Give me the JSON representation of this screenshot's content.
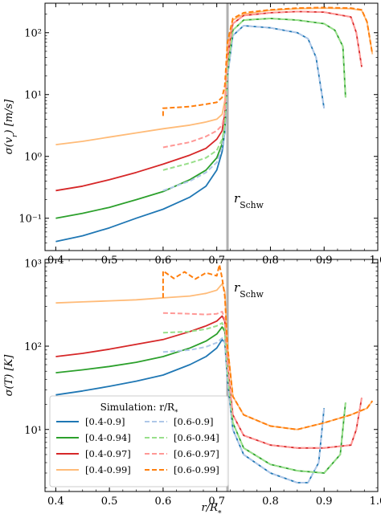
{
  "chart_data": [
    {
      "type": "line",
      "panel": "top",
      "ylabel": "σ(v_r) [m/s]",
      "xlabel": "",
      "yscale": "log",
      "xlim": [
        0.38,
        1.0
      ],
      "ylim": [
        0.03,
        300
      ],
      "xticks": [
        0.4,
        0.5,
        0.6,
        0.7,
        0.8,
        0.9,
        1.0
      ],
      "xtick_labels": [
        "0.4",
        "0.5",
        "0.6",
        "0.7",
        "0.8",
        "0.9",
        "1.0"
      ],
      "yticks": [
        0.1,
        1,
        10,
        100
      ],
      "ytick_labels": [
        "10⁻¹",
        "10⁰",
        "10¹",
        "10²"
      ],
      "vline": {
        "x": 0.72,
        "label": "r_Schw"
      },
      "series": [
        {
          "name": "[0.4-0.9]",
          "color": "#1f77b4",
          "style": "solid",
          "x": [
            0.4,
            0.45,
            0.5,
            0.55,
            0.6,
            0.65,
            0.68,
            0.7,
            0.71,
            0.715,
            0.72,
            0.73,
            0.75,
            0.8,
            0.85,
            0.87,
            0.885,
            0.9
          ],
          "y": [
            0.042,
            0.052,
            0.07,
            0.1,
            0.14,
            0.22,
            0.33,
            0.6,
            1.2,
            2.5,
            20,
            90,
            130,
            120,
            100,
            80,
            40,
            6
          ]
        },
        {
          "name": "[0.4-0.94]",
          "color": "#2ca02c",
          "style": "solid",
          "x": [
            0.4,
            0.45,
            0.5,
            0.55,
            0.6,
            0.65,
            0.68,
            0.7,
            0.71,
            0.715,
            0.72,
            0.73,
            0.75,
            0.8,
            0.85,
            0.9,
            0.92,
            0.935,
            0.94
          ],
          "y": [
            0.1,
            0.12,
            0.15,
            0.2,
            0.27,
            0.42,
            0.6,
            0.95,
            1.6,
            3,
            25,
            110,
            160,
            170,
            160,
            140,
            110,
            60,
            9
          ]
        },
        {
          "name": "[0.4-0.97]",
          "color": "#d62728",
          "style": "solid",
          "x": [
            0.4,
            0.45,
            0.5,
            0.55,
            0.6,
            0.65,
            0.68,
            0.7,
            0.71,
            0.715,
            0.72,
            0.73,
            0.75,
            0.8,
            0.85,
            0.9,
            0.95,
            0.96,
            0.97
          ],
          "y": [
            0.28,
            0.33,
            0.42,
            0.55,
            0.75,
            1.05,
            1.35,
            1.9,
            2.6,
            5,
            40,
            140,
            190,
            210,
            220,
            215,
            180,
            100,
            28
          ]
        },
        {
          "name": "[0.4-0.99]",
          "color": "#ffbb78",
          "style": "solid",
          "x": [
            0.4,
            0.45,
            0.5,
            0.55,
            0.6,
            0.65,
            0.68,
            0.7,
            0.71,
            0.715,
            0.72,
            0.73,
            0.75,
            0.8,
            0.85,
            0.9,
            0.95,
            0.97,
            0.98,
            0.99
          ],
          "y": [
            1.55,
            1.75,
            2.05,
            2.4,
            2.8,
            3.2,
            3.6,
            4,
            4.8,
            8,
            60,
            160,
            200,
            230,
            245,
            250,
            245,
            230,
            150,
            45
          ]
        },
        {
          "name": "[0.6-0.9]",
          "color": "#aec7e8",
          "style": "dashed",
          "x": [
            0.6,
            0.65,
            0.68,
            0.7,
            0.71,
            0.715,
            0.72,
            0.73,
            0.75,
            0.8,
            0.85,
            0.87,
            0.885,
            0.9
          ],
          "y": [
            0.28,
            0.4,
            0.55,
            0.8,
            1.4,
            2.6,
            20,
            90,
            130,
            120,
            100,
            80,
            40,
            6
          ]
        },
        {
          "name": "[0.6-0.94]",
          "color": "#98df8a",
          "style": "dashed",
          "x": [
            0.6,
            0.65,
            0.68,
            0.7,
            0.71,
            0.715,
            0.72,
            0.73,
            0.75,
            0.8,
            0.85,
            0.9,
            0.92,
            0.935,
            0.94
          ],
          "y": [
            0.6,
            0.78,
            0.95,
            1.25,
            1.9,
            3.2,
            25,
            110,
            160,
            170,
            160,
            140,
            110,
            60,
            9
          ]
        },
        {
          "name": "[0.6-0.97]",
          "color": "#ff9896",
          "style": "dashed",
          "x": [
            0.6,
            0.65,
            0.68,
            0.7,
            0.71,
            0.715,
            0.72,
            0.73,
            0.75,
            0.8,
            0.85,
            0.9,
            0.95,
            0.96,
            0.97
          ],
          "y": [
            1.4,
            1.7,
            2.1,
            2.6,
            3.2,
            5.2,
            40,
            140,
            190,
            210,
            220,
            215,
            180,
            100,
            28
          ]
        },
        {
          "name": "[0.6-0.99]",
          "color": "#ff7f0e",
          "style": "dashed",
          "x": [
            0.6,
            0.6,
            0.65,
            0.68,
            0.7,
            0.71,
            0.715,
            0.72,
            0.73,
            0.75,
            0.8,
            0.85,
            0.9,
            0.95,
            0.97,
            0.98,
            0.99
          ],
          "y": [
            4.5,
            6,
            6.4,
            7,
            7.5,
            9,
            14,
            70,
            170,
            210,
            235,
            250,
            255,
            250,
            235,
            150,
            45
          ]
        }
      ]
    },
    {
      "type": "line",
      "panel": "bottom",
      "ylabel": "σ(T) [K]",
      "xlabel": "r/R_*",
      "yscale": "log",
      "xlim": [
        0.38,
        1.0
      ],
      "ylim": [
        1.8,
        1100
      ],
      "xticks": [
        0.4,
        0.5,
        0.6,
        0.7,
        0.8,
        0.9,
        1.0
      ],
      "xtick_labels": [
        "0.4",
        "0.5",
        "0.6",
        "0.7",
        "0.8",
        "0.9",
        "1.0"
      ],
      "yticks": [
        10,
        100,
        1000
      ],
      "ytick_labels": [
        "10¹",
        "10²",
        "10³"
      ],
      "vline": {
        "x": 0.72,
        "label": "r_Schw"
      },
      "legend": {
        "title": "Simulation: r/R_*",
        "placement": "lower-left",
        "columns": 2
      },
      "series": [
        {
          "name": "[0.4-0.9]",
          "color": "#1f77b4",
          "style": "solid",
          "x": [
            0.4,
            0.45,
            0.5,
            0.55,
            0.6,
            0.65,
            0.68,
            0.7,
            0.71,
            0.715,
            0.72,
            0.73,
            0.75,
            0.8,
            0.85,
            0.87,
            0.89,
            0.9
          ],
          "y": [
            26,
            29,
            33,
            38,
            45,
            60,
            75,
            95,
            120,
            110,
            40,
            10,
            5,
            3,
            2.3,
            2.3,
            4,
            18
          ]
        },
        {
          "name": "[0.4-0.94]",
          "color": "#2ca02c",
          "style": "solid",
          "x": [
            0.4,
            0.45,
            0.5,
            0.55,
            0.6,
            0.65,
            0.68,
            0.7,
            0.71,
            0.715,
            0.72,
            0.73,
            0.75,
            0.8,
            0.85,
            0.9,
            0.93,
            0.94
          ],
          "y": [
            48,
            52,
            57,
            64,
            75,
            95,
            115,
            140,
            170,
            150,
            50,
            12,
            6,
            3.8,
            3.2,
            3,
            5,
            21
          ]
        },
        {
          "name": "[0.4-0.97]",
          "color": "#d62728",
          "style": "solid",
          "x": [
            0.4,
            0.45,
            0.5,
            0.55,
            0.6,
            0.65,
            0.68,
            0.7,
            0.71,
            0.715,
            0.72,
            0.73,
            0.75,
            0.8,
            0.85,
            0.9,
            0.95,
            0.96,
            0.97
          ],
          "y": [
            75,
            82,
            92,
            105,
            120,
            150,
            175,
            200,
            230,
            200,
            60,
            15,
            8.5,
            6.5,
            6,
            6,
            6.5,
            10,
            24
          ]
        },
        {
          "name": "[0.4-0.99]",
          "color": "#ffbb78",
          "style": "solid",
          "x": [
            0.4,
            0.45,
            0.5,
            0.55,
            0.6,
            0.65,
            0.68,
            0.7,
            0.71,
            0.715,
            0.72,
            0.73,
            0.75,
            0.8,
            0.85,
            0.9,
            0.95,
            0.98,
            0.99
          ],
          "y": [
            330,
            340,
            350,
            360,
            380,
            400,
            430,
            470,
            560,
            450,
            100,
            25,
            15,
            11,
            10,
            12,
            15,
            18,
            22
          ]
        },
        {
          "name": "[0.6-0.9]",
          "color": "#aec7e8",
          "style": "dashed",
          "x": [
            0.6,
            0.65,
            0.68,
            0.7,
            0.71,
            0.715,
            0.72,
            0.73,
            0.75,
            0.8,
            0.85,
            0.87,
            0.89,
            0.9
          ],
          "y": [
            85,
            90,
            98,
            110,
            125,
            110,
            40,
            10,
            5,
            3,
            2.3,
            2.3,
            4,
            18
          ]
        },
        {
          "name": "[0.6-0.94]",
          "color": "#98df8a",
          "style": "dashed",
          "x": [
            0.6,
            0.65,
            0.68,
            0.7,
            0.71,
            0.715,
            0.72,
            0.73,
            0.75,
            0.8,
            0.85,
            0.9,
            0.93,
            0.94
          ],
          "y": [
            145,
            150,
            160,
            175,
            190,
            160,
            50,
            12,
            6,
            3.8,
            3.2,
            3,
            5,
            21
          ]
        },
        {
          "name": "[0.6-0.97]",
          "color": "#ff9896",
          "style": "dashed",
          "x": [
            0.6,
            0.65,
            0.68,
            0.7,
            0.71,
            0.715,
            0.72,
            0.73,
            0.75,
            0.8,
            0.85,
            0.9,
            0.95,
            0.96,
            0.97
          ],
          "y": [
            250,
            245,
            240,
            245,
            260,
            210,
            60,
            15,
            8.5,
            6.5,
            6,
            6,
            6.5,
            10,
            24
          ]
        },
        {
          "name": "[0.6-0.99]",
          "color": "#ff7f0e",
          "style": "dashed",
          "x": [
            0.6,
            0.6,
            0.62,
            0.64,
            0.66,
            0.68,
            0.7,
            0.705,
            0.71,
            0.715,
            0.72,
            0.73,
            0.75,
            0.8,
            0.85,
            0.9,
            0.95,
            0.98,
            0.99
          ],
          "y": [
            380,
            800,
            650,
            780,
            640,
            760,
            700,
            950,
            650,
            400,
            100,
            25,
            15,
            11,
            10,
            12,
            15,
            18,
            22
          ]
        }
      ]
    }
  ]
}
